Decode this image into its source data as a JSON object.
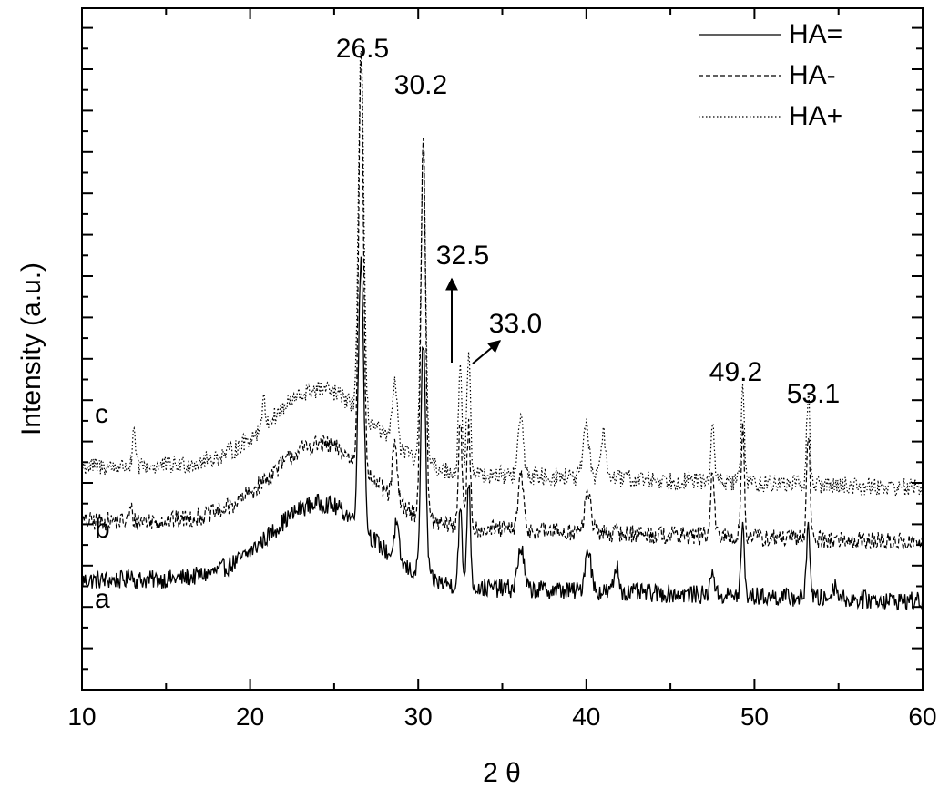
{
  "chart_data": {
    "type": "line",
    "xlabel": "2 θ",
    "ylabel": "Intensity (a.u.)",
    "xlim": [
      10,
      60
    ],
    "xticks": [
      10,
      20,
      30,
      40,
      50,
      60
    ],
    "yticks_labeled": false,
    "grid": false,
    "legend_position": "top-right",
    "series": [
      {
        "name": "HA=",
        "tag": "a",
        "line_style": "solid",
        "base": 1.35,
        "peaks": [
          [
            12.9,
            0.1,
            0.12
          ],
          [
            26.6,
            3.2,
            0.22
          ],
          [
            28.7,
            0.42,
            0.2
          ],
          [
            30.3,
            2.8,
            0.2
          ],
          [
            32.5,
            0.9,
            0.15
          ],
          [
            33.0,
            1.25,
            0.15
          ],
          [
            36.1,
            0.5,
            0.25
          ],
          [
            40.1,
            0.52,
            0.25
          ],
          [
            41.8,
            0.3,
            0.2
          ],
          [
            47.5,
            0.33,
            0.15
          ],
          [
            49.3,
            0.82,
            0.14
          ],
          [
            53.2,
            0.92,
            0.14
          ],
          [
            54.8,
            0.15,
            0.25
          ]
        ]
      },
      {
        "name": "HA-",
        "tag": "b",
        "line_style": "dashed",
        "base": 2.05,
        "peaks": [
          [
            12.9,
            0.15,
            0.12
          ],
          [
            26.6,
            4.95,
            0.2
          ],
          [
            28.6,
            0.65,
            0.2
          ],
          [
            30.3,
            4.5,
            0.2
          ],
          [
            32.5,
            1.3,
            0.15
          ],
          [
            33.0,
            1.2,
            0.15
          ],
          [
            36.1,
            0.65,
            0.22
          ],
          [
            40.1,
            0.5,
            0.25
          ],
          [
            47.5,
            0.75,
            0.15
          ],
          [
            49.3,
            1.3,
            0.14
          ],
          [
            53.2,
            1.3,
            0.14
          ]
        ]
      },
      {
        "name": "HA+",
        "tag": "c",
        "line_style": "dotted",
        "base": 2.7,
        "peaks": [
          [
            13.1,
            0.4,
            0.12
          ],
          [
            20.8,
            0.3,
            0.15
          ],
          [
            26.6,
            4.35,
            0.22
          ],
          [
            28.6,
            0.8,
            0.2
          ],
          [
            30.3,
            3.8,
            0.2
          ],
          [
            32.5,
            1.25,
            0.15
          ],
          [
            33.0,
            1.4,
            0.15
          ],
          [
            36.1,
            0.7,
            0.22
          ],
          [
            40.0,
            0.6,
            0.25
          ],
          [
            41.0,
            0.5,
            0.25
          ],
          [
            47.5,
            0.65,
            0.15
          ],
          [
            49.3,
            1.1,
            0.14
          ],
          [
            53.2,
            1.05,
            0.14
          ]
        ]
      }
    ],
    "peak_labels": [
      "26.5",
      "30.2",
      "32.5",
      "33.0",
      "49.2",
      "53.1"
    ],
    "curve_tags": [
      "a",
      "b",
      "c"
    ]
  }
}
